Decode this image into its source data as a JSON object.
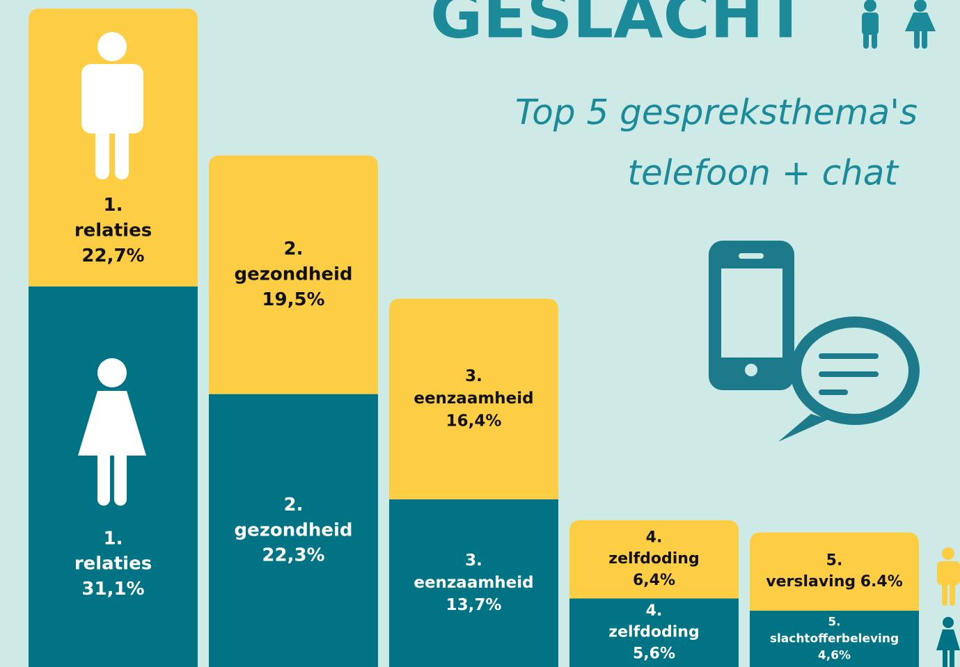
{
  "chart_data": {
    "type": "stacked_bar",
    "title": "GESLACHT",
    "subtitle": [
      "Top 5 gespreksthema's",
      "telefoon + chat"
    ],
    "categories": [
      "1.",
      "2.",
      "3.",
      "4.",
      "5."
    ],
    "ylim": [
      0,
      54.5
    ],
    "series": [
      {
        "color": "#007385",
        "themes": [
          "relaties",
          "gezondheid",
          "eenzaamheid",
          "zelfdoding",
          "slachtofferbeleving"
        ],
        "values": [
          31.1,
          22.3,
          13.7,
          5.6,
          4.6
        ],
        "value_labels": [
          "31,1%",
          "22,3%",
          "13,7%",
          "5,6%",
          "4,6%"
        ]
      },
      {
        "color": "#fdce44",
        "themes": [
          "relaties",
          "gezondheid",
          "eenzaamheid",
          "zelfdoding",
          "verslaving"
        ],
        "values": [
          22.7,
          19.5,
          16.4,
          6.4,
          6.4
        ],
        "value_labels": [
          "22,7%",
          "19,5%",
          "16,4%",
          "6,4%",
          "6.4%"
        ]
      }
    ]
  }
}
